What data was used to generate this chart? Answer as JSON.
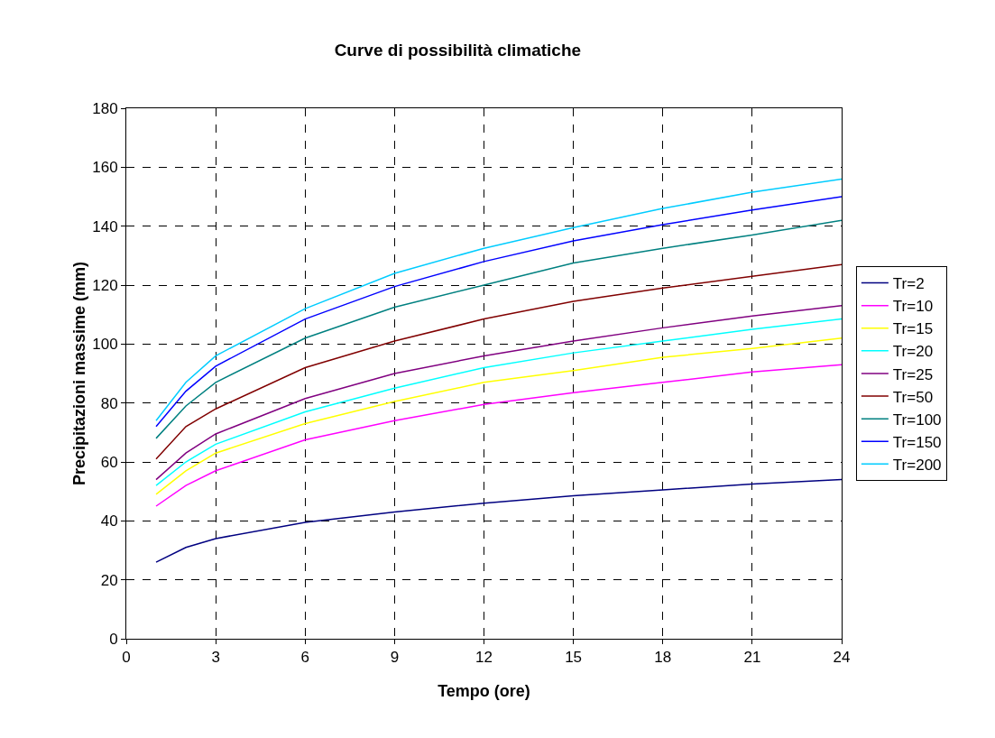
{
  "chart_data": {
    "type": "line",
    "title": "Curve di possibilità climatiche",
    "xlabel": "Tempo (ore)",
    "ylabel": "Precipitazioni massime (mm)",
    "x": [
      1,
      2,
      3,
      6,
      9,
      12,
      15,
      18,
      21,
      24
    ],
    "xlim": [
      0,
      24
    ],
    "xticks": [
      0,
      3,
      6,
      9,
      12,
      15,
      18,
      21,
      24
    ],
    "ylim": [
      0,
      180
    ],
    "yticks": [
      0,
      20,
      40,
      60,
      80,
      100,
      120,
      140,
      160,
      180
    ],
    "grid": true,
    "legend": "right",
    "marker": "none",
    "line_style": "solid",
    "series": [
      {
        "name": "Tr=2",
        "color": "#000080",
        "values": [
          26,
          31,
          34,
          39.5,
          43,
          46,
          48.5,
          50.5,
          52.5,
          54
        ]
      },
      {
        "name": "Tr=10",
        "color": "#ff00ff",
        "values": [
          45,
          52,
          57,
          67.5,
          74,
          79.5,
          83.5,
          87,
          90.5,
          93
        ]
      },
      {
        "name": "Tr=15",
        "color": "#ffff00",
        "values": [
          49,
          57,
          63,
          73,
          80.5,
          87,
          91,
          95.5,
          98.5,
          102
        ]
      },
      {
        "name": "Tr=20",
        "color": "#00ffff",
        "values": [
          52,
          60,
          66,
          77,
          85,
          92,
          97,
          101,
          105,
          108.5
        ]
      },
      {
        "name": "Tr=25",
        "color": "#800080",
        "values": [
          54,
          63,
          69.5,
          81.5,
          90,
          96,
          101,
          105.5,
          109.5,
          113
        ]
      },
      {
        "name": "Tr=50",
        "color": "#800000",
        "values": [
          61,
          72,
          78,
          92,
          101,
          108.5,
          114.5,
          119,
          123,
          127
        ]
      },
      {
        "name": "Tr=100",
        "color": "#008080",
        "values": [
          68,
          79,
          87,
          102,
          112.5,
          120,
          127.5,
          132.5,
          137,
          142
        ]
      },
      {
        "name": "Tr=150",
        "color": "#0000ff",
        "values": [
          72,
          84,
          92.5,
          108.5,
          119.5,
          128,
          135,
          140.5,
          145.5,
          150
        ]
      },
      {
        "name": "Tr=200",
        "color": "#00ccff",
        "values": [
          74,
          87,
          96,
          112,
          124,
          132.5,
          139.5,
          146,
          151.5,
          156
        ]
      }
    ]
  }
}
